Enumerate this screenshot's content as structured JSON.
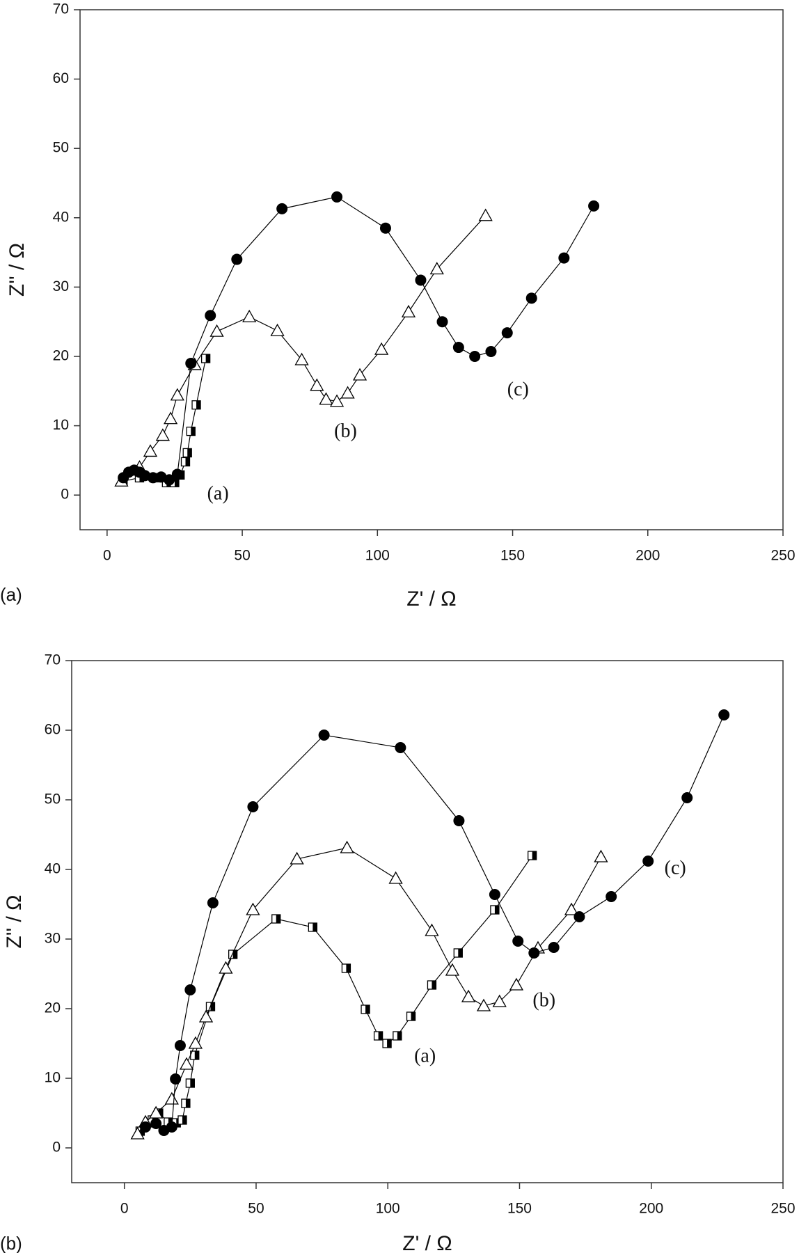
{
  "chart_data": [
    {
      "type": "scatter-line",
      "panel_label": "(a)",
      "x_label": "Z' / Ω",
      "y_label": "Z'' / Ω",
      "xlim": [
        -10,
        250
      ],
      "xticks": [
        0,
        50,
        100,
        150,
        200,
        250
      ],
      "ylim": [
        -5,
        70
      ],
      "yticks": [
        0,
        10,
        20,
        30,
        40,
        50,
        60,
        70
      ],
      "series": [
        {
          "name": "(a)",
          "color": "#000000",
          "marker": "square-half",
          "x": [
            5.9,
            12,
            17.6,
            22,
            25,
            27,
            29,
            29.7,
            31,
            33,
            36.5
          ],
          "values": [
            2,
            2.5,
            2.5,
            1.8,
            1.8,
            2.9,
            4.8,
            6.1,
            9.2,
            13,
            19.7
          ]
        },
        {
          "name": "(b)",
          "color": "#000000",
          "marker": "triangle-open",
          "x": [
            5.3,
            12,
            16,
            20.6,
            23.5,
            26,
            32.4,
            40.6,
            52.6,
            63,
            72,
            77.6,
            81,
            85,
            89,
            93.5,
            101.5,
            111.5,
            122,
            140
          ],
          "values": [
            2,
            4,
            6.3,
            8.6,
            11,
            14.4,
            18.8,
            23.6,
            25.7,
            23.7,
            19.5,
            15.8,
            13.8,
            13.5,
            14.7,
            17.3,
            21,
            26.4,
            32.6,
            40.3
          ]
        },
        {
          "name": "(c)",
          "color": "#000000",
          "marker": "circle",
          "x": [
            6,
            8,
            10,
            12,
            14,
            17,
            20,
            23,
            26,
            31,
            38.2,
            48,
            64.7,
            85,
            103,
            116,
            124,
            130,
            136,
            142,
            148,
            157,
            169,
            180
          ],
          "values": [
            2.5,
            3.3,
            3.6,
            3.3,
            2.8,
            2.5,
            2.6,
            2.2,
            3,
            19,
            25.9,
            34,
            41.3,
            43,
            38.5,
            31,
            25,
            21.3,
            20,
            20.7,
            23.4,
            28.4,
            34.2,
            41.7
          ]
        }
      ]
    },
    {
      "type": "scatter-line",
      "panel_label": "(b)",
      "x_label": "Z' / Ω",
      "y_label": "Z'' / Ω",
      "xlim": [
        -20,
        250
      ],
      "xticks": [
        0,
        50,
        100,
        150,
        200,
        250
      ],
      "ylim": [
        -5,
        70
      ],
      "yticks": [
        0,
        10,
        20,
        30,
        40,
        50,
        60,
        70
      ],
      "series": [
        {
          "name": "(a)",
          "color": "#000000",
          "marker": "square-half",
          "x": [
            6,
            10.6,
            13,
            16.7,
            19.7,
            22,
            23.3,
            25,
            26.7,
            32.7,
            41.2,
            57.6,
            71.5,
            84.2,
            91.5,
            96.4,
            99.7,
            103.6,
            108.8,
            116.7,
            126.7,
            140.6,
            154.8
          ],
          "values": [
            2.4,
            4,
            5,
            3.7,
            3.6,
            4,
            6.4,
            9.3,
            13.3,
            20.3,
            27.8,
            32.9,
            31.7,
            25.8,
            19.9,
            16.1,
            15,
            16.1,
            18.9,
            23.4,
            28,
            34.2,
            42
          ]
        },
        {
          "name": "(b)",
          "color": "#000000",
          "marker": "triangle-open",
          "x": [
            5,
            8,
            12,
            18,
            23.6,
            27,
            31,
            38.5,
            48.8,
            65.5,
            84.5,
            103,
            116.7,
            124.5,
            130.6,
            136.4,
            142.4,
            148.8,
            157,
            169.7,
            180.9
          ],
          "values": [
            2,
            3.7,
            5,
            7,
            12,
            15,
            18.8,
            25.8,
            34.2,
            41.5,
            43.1,
            38.7,
            31.2,
            25.5,
            21.7,
            20.4,
            21,
            23.4,
            28.7,
            34.2,
            41.8
          ]
        },
        {
          "name": "(c)",
          "color": "#000000",
          "marker": "circle",
          "x": [
            8,
            12,
            15,
            18,
            19.4,
            21.2,
            25,
            33.6,
            48.8,
            75.8,
            104.8,
            127,
            140.6,
            149.4,
            155.5,
            163,
            172.7,
            184.8,
            198.8,
            213.6,
            227.6
          ],
          "values": [
            3,
            3.5,
            2.5,
            3,
            9.9,
            14.7,
            22.7,
            35.2,
            49,
            59.3,
            57.5,
            47,
            36.4,
            29.7,
            28,
            28.8,
            33.2,
            36.1,
            41.2,
            50.3,
            62.2
          ]
        }
      ]
    }
  ]
}
